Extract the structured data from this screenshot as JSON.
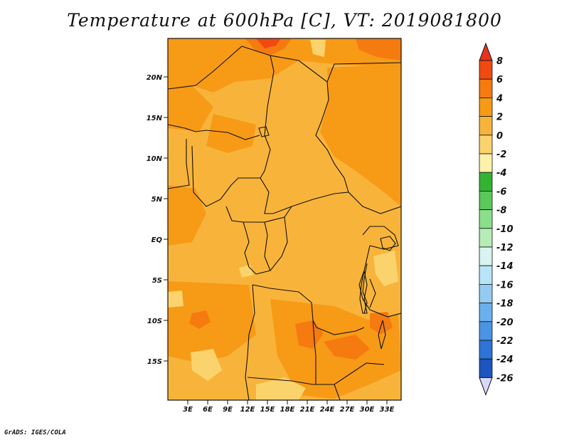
{
  "title": "Temperature at 600hPa [C], VT: 2019081800",
  "credit": "GrADS: IGES/COLA",
  "lat_ticks": [
    "20N",
    "15N",
    "10N",
    "5N",
    "EQ",
    "5S",
    "10S",
    "15S"
  ],
  "lon_ticks": [
    "3E",
    "6E",
    "9E",
    "12E",
    "15E",
    "18E",
    "21E",
    "24E",
    "27E",
    "30E",
    "33E"
  ],
  "colorbar": {
    "labels": [
      "8",
      "6",
      "4",
      "2",
      "0",
      "-2",
      "-4",
      "-6",
      "-8",
      "-10",
      "-12",
      "-14",
      "-16",
      "-18",
      "-20",
      "-22",
      "-24",
      "-26"
    ],
    "colors": [
      "#e8321e",
      "#f04a10",
      "#f57a10",
      "#f79a16",
      "#f8b43a",
      "#fbd36c",
      "#fdf2a8",
      "#32b432",
      "#5ac85a",
      "#8ae08a",
      "#b6ecb6",
      "#d8f4f0",
      "#b8e4f8",
      "#92ccf2",
      "#6ab0ec",
      "#4a94e4",
      "#2c74d8",
      "#1c54c0",
      "#0c2c90",
      "#080a60",
      "#d8d8f8"
    ]
  }
}
